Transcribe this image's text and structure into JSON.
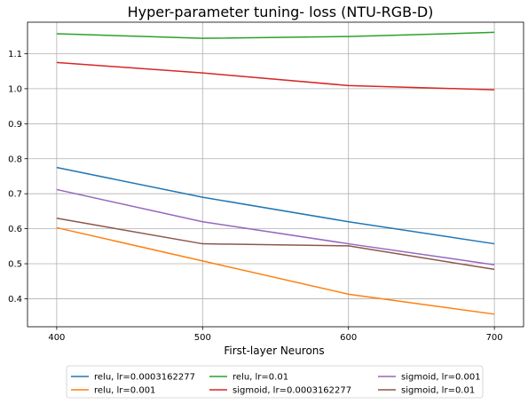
{
  "chart_data": {
    "type": "line",
    "title": "Hyper-parameter tuning- loss (NTU-RGB-D)",
    "xlabel": "First-layer Neurons",
    "ylabel": "",
    "x": [
      400,
      500,
      600,
      700
    ],
    "xlim": [
      380,
      720
    ],
    "ylim": [
      0.32,
      1.19
    ],
    "xticks": [
      400,
      500,
      600,
      700
    ],
    "yticks": [
      0.4,
      0.5,
      0.6,
      0.7,
      0.8,
      0.9,
      1.0,
      1.1
    ],
    "ytick_labels": [
      "0.4",
      "0.5",
      "0.6",
      "0.7",
      "0.8",
      "0.9",
      "1.0",
      "1.1"
    ],
    "grid": true,
    "legend_position": "bottom-outside",
    "series": [
      {
        "name": "relu, lr=0.0003162277",
        "color": "#1f77b4",
        "values": [
          0.775,
          0.69,
          0.62,
          0.557
        ]
      },
      {
        "name": "relu, lr=0.001",
        "color": "#ff7f0e",
        "values": [
          0.603,
          0.508,
          0.413,
          0.356
        ]
      },
      {
        "name": "relu, lr=0.01",
        "color": "#2ca02c",
        "values": [
          1.157,
          1.144,
          1.149,
          1.161
        ]
      },
      {
        "name": "sigmoid, lr=0.0003162277",
        "color": "#d62728",
        "values": [
          1.075,
          1.045,
          1.009,
          0.997
        ]
      },
      {
        "name": "sigmoid, lr=0.001",
        "color": "#9467bd",
        "values": [
          0.712,
          0.62,
          0.557,
          0.497
        ]
      },
      {
        "name": "sigmoid, lr=0.01",
        "color": "#8c564b",
        "values": [
          0.63,
          0.557,
          0.551,
          0.484
        ]
      }
    ]
  }
}
